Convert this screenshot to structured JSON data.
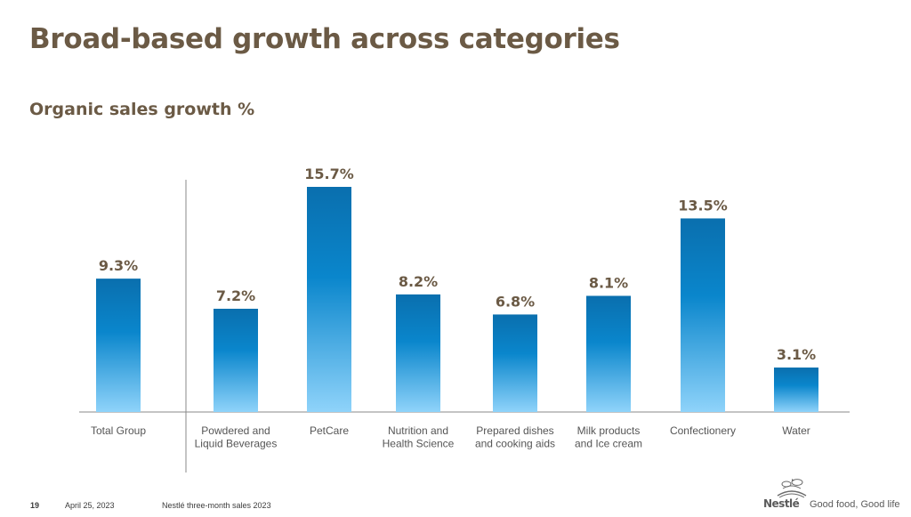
{
  "slide": {
    "title": "Broad-based growth across categories",
    "subtitle": "Organic sales growth %"
  },
  "footer": {
    "page_number": "19",
    "date": "April 25, 2023",
    "doc_title": "Nestlé three-month sales 2023"
  },
  "brand": {
    "logo_word": "Nestlé",
    "tagline": "Good food, Good life",
    "icon": "nest-birds-icon"
  },
  "colors": {
    "title": "#6b5a45",
    "bar_top": "#0a6fae",
    "bar_mid": "#0a86cc",
    "bar_bottom": "#8fd3fa",
    "label": "#6b5a45",
    "category_label": "#555555",
    "axis": "#8a8a8a"
  },
  "chart_data": {
    "type": "bar",
    "title": "Organic sales growth %",
    "categories": [
      "Total Group",
      "Powdered and\nLiquid Beverages",
      "PetCare",
      "Nutrition and\nHealth Science",
      "Prepared dishes\nand cooking aids",
      "Milk products\nand Ice cream",
      "Confectionery",
      "Water"
    ],
    "values": [
      9.3,
      7.2,
      15.7,
      8.2,
      6.8,
      8.1,
      13.5,
      3.1
    ],
    "data_labels": [
      "9.3%",
      "7.2%",
      "15.7%",
      "8.2%",
      "6.8%",
      "8.1%",
      "13.5%",
      "3.1%"
    ],
    "ylim": [
      0,
      15.7
    ],
    "xlabel": "",
    "ylabel": "",
    "grid": false,
    "legend": "none"
  }
}
